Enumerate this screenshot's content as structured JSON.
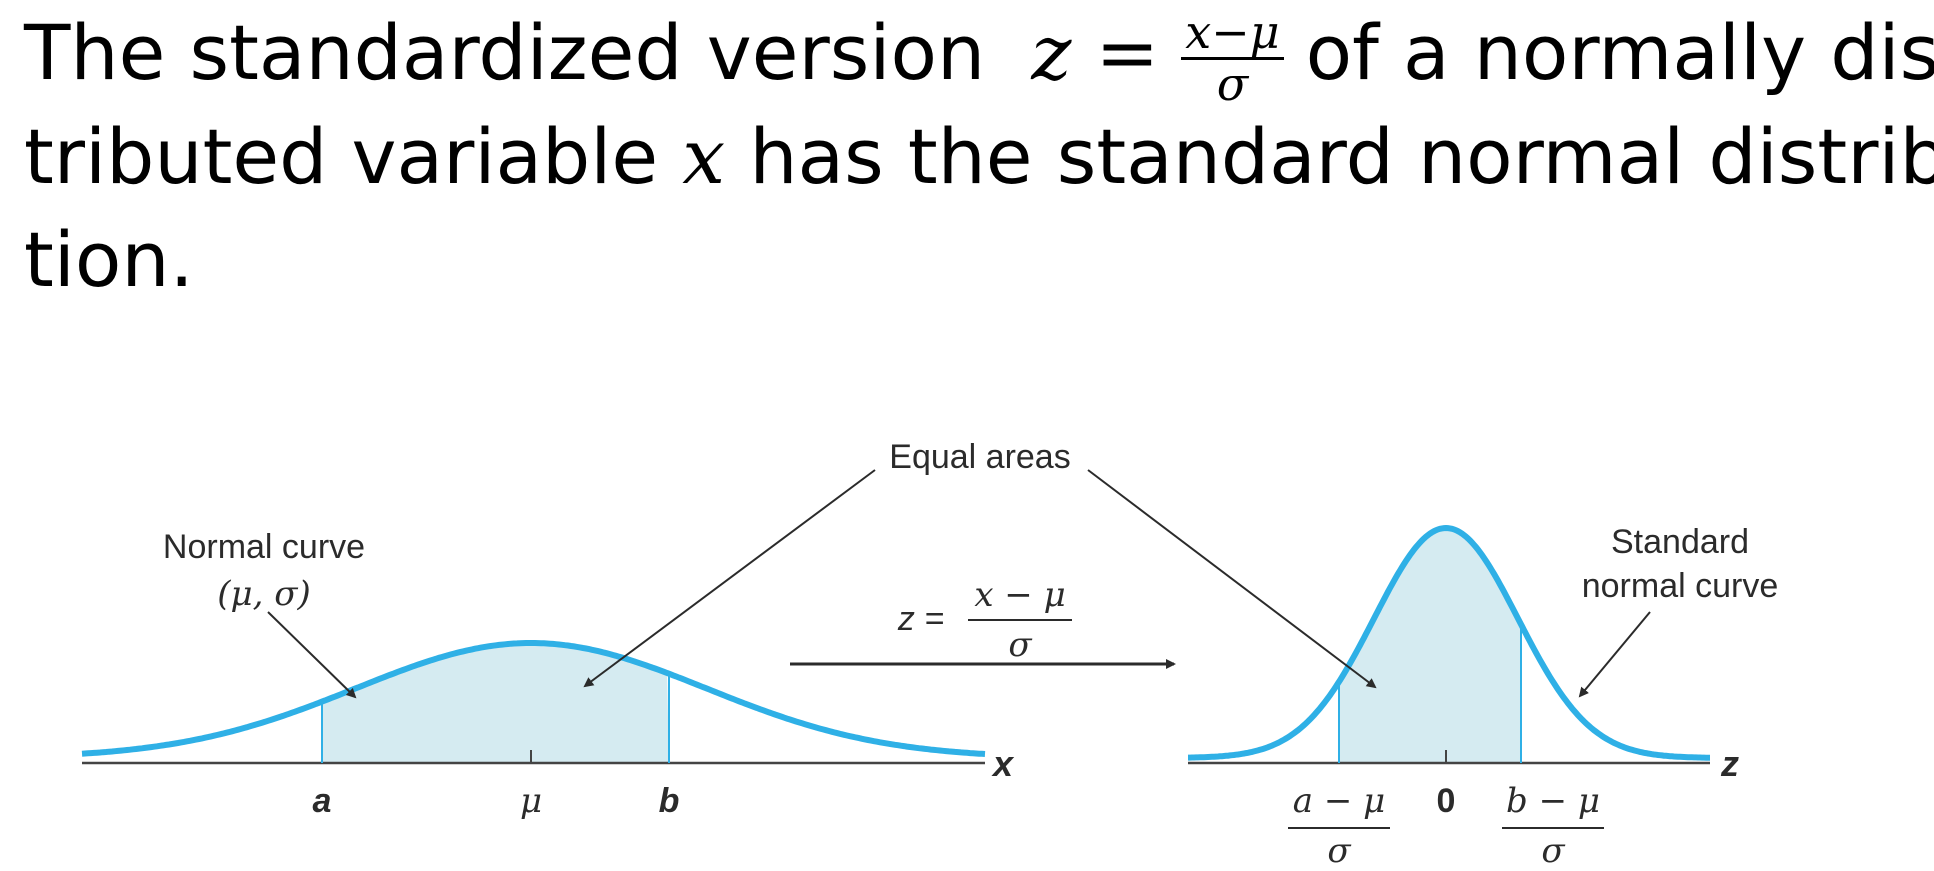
{
  "text": {
    "line1_a": "The standardized version",
    "z_eq": "z =",
    "frac_num": "x−μ",
    "frac_den": "σ",
    "line1_b": "of a normally dis-",
    "line2_a": "tributed variable",
    "x_var": "x",
    "line2_b": "has the standard normal distribu-",
    "line3": "tion."
  },
  "figure": {
    "left_label_1": "Normal curve",
    "left_label_2": "(μ, σ)",
    "equal_areas": "Equal areas",
    "right_label_1": "Standard",
    "right_label_2": "normal curve",
    "transform_z": "z =",
    "transform_num": "x − μ",
    "transform_den": "σ",
    "x_axis": "x",
    "z_axis": "z",
    "tick_a": "a",
    "tick_mu": "μ",
    "tick_b": "b",
    "tick_zero": "0",
    "zl_num": "a − μ",
    "zl_den": "σ",
    "zr_num": "b − μ",
    "zr_den": "σ"
  },
  "colors": {
    "curve": "#2fb0e6",
    "shade": "#d5ebf1",
    "text": "#2b2b2b"
  }
}
